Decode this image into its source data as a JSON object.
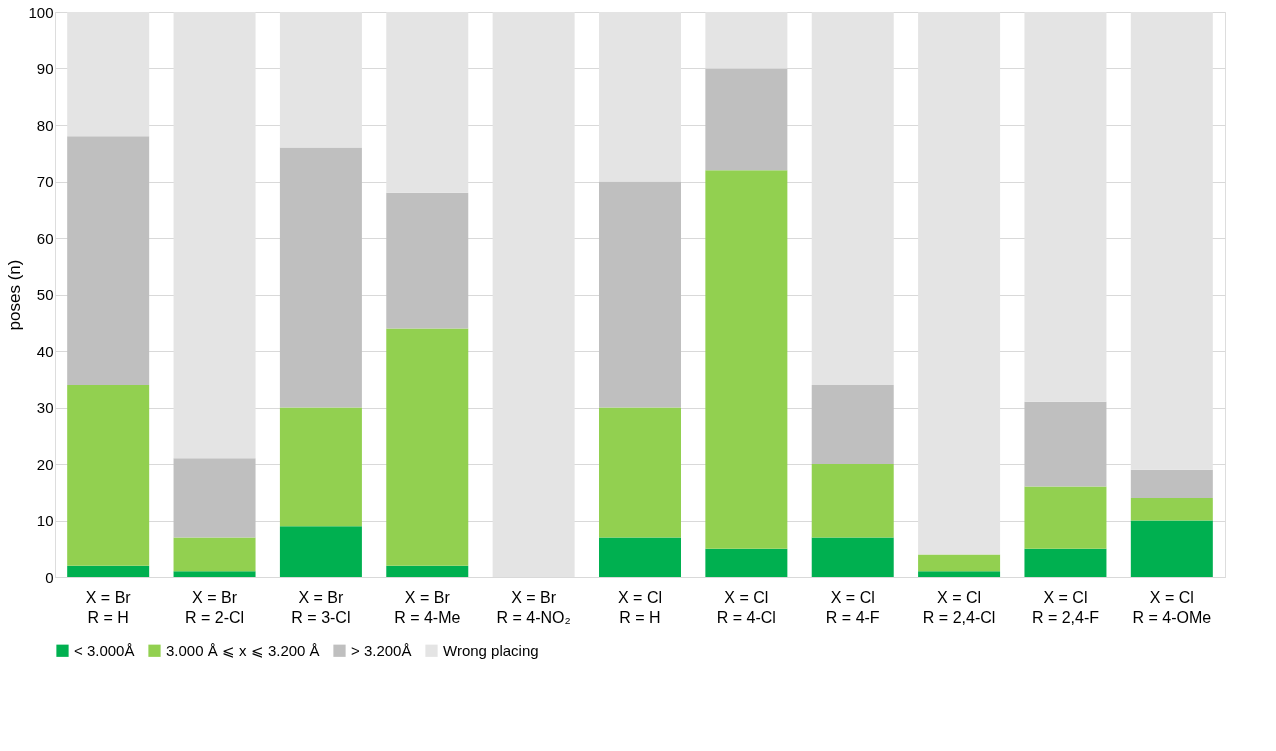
{
  "chart_data": {
    "type": "bar",
    "stacked": true,
    "ylabel": "poses (n)",
    "categories": [
      "X = Br\nR = H",
      "X = Br\nR = 2-Cl",
      "X = Br\nR = 3-Cl",
      "X = Br\nR = 4-Me",
      "X = Br\nR = 4-NO₂",
      "X = Cl\nR = H",
      "X = Cl\nR = 4-Cl",
      "X = Cl\nR = 4-F",
      "X = Cl\nR = 2,4-Cl",
      "X = Cl\nR = 2,4-F",
      "X = Cl\nR = 4-OMe"
    ],
    "series": [
      {
        "name": "< 3.000Å",
        "color": "#00b050",
        "values": [
          2,
          1,
          9,
          2,
          0,
          7,
          5,
          7,
          1,
          5,
          10
        ]
      },
      {
        "name": "3.000 Å ⩽ x ⩽ 3.200 Å",
        "color": "#92d050",
        "values": [
          32,
          6,
          21,
          42,
          0,
          23,
          67,
          13,
          3,
          11,
          4
        ]
      },
      {
        "name": "> 3.200Å",
        "color": "#bfbfbf",
        "values": [
          44,
          14,
          46,
          24,
          0,
          40,
          18,
          14,
          0,
          15,
          5
        ]
      },
      {
        "name": "Wrong placing",
        "color": "#e4e4e4",
        "values": [
          22,
          79,
          24,
          32,
          100,
          30,
          10,
          66,
          96,
          69,
          81
        ]
      }
    ],
    "ylim": [
      0,
      100
    ],
    "yticks": [
      0,
      10,
      20,
      30,
      40,
      50,
      60,
      70,
      80,
      90,
      100
    ],
    "grid": "y",
    "legend": "bottom"
  }
}
